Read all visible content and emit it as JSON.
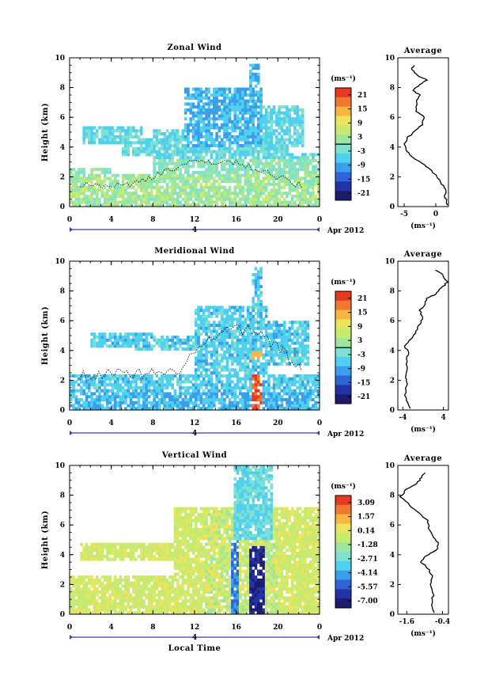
{
  "colors": {
    "frame": "#000000",
    "palette": [
      "#1c1c6e",
      "#2233a8",
      "#2f63d8",
      "#3a9fea",
      "#4fd0ee",
      "#7ee0d0",
      "#9ee59e",
      "#c7ea70",
      "#ece45c",
      "#f6b640",
      "#f07832",
      "#e83a22"
    ],
    "timeline": "#3a3aa0"
  },
  "chart_data": [
    {
      "type": "heatmap",
      "title": "Zonal Wind",
      "ylabel": "Height (km)",
      "x_ticks": [
        "0",
        "4",
        "8",
        "12",
        "16",
        "20",
        "0"
      ],
      "y_ticks": [
        "0",
        "2",
        "4",
        "6",
        "8",
        "10"
      ],
      "xlim": [
        0,
        24
      ],
      "ylim": [
        0,
        10
      ],
      "date_label": "Apr 2012",
      "timeline_label": "4",
      "colorbar": {
        "unit": "(ms⁻¹)",
        "ticks": [
          "21",
          "15",
          "9",
          "3",
          "-3",
          "-9",
          "-15",
          "-21"
        ],
        "zero_line_at": "3",
        "range": [
          -24,
          24
        ]
      },
      "profile": {
        "title": "Average",
        "xlabel": "(ms⁻¹)",
        "x_ticks": [
          "-5",
          "0"
        ],
        "xlim": [
          -6,
          2
        ],
        "points": [
          [
            1.8,
            0.1
          ],
          [
            1.5,
            0.6
          ],
          [
            1.6,
            1.2
          ],
          [
            0.8,
            1.6
          ],
          [
            0.2,
            2.0
          ],
          [
            -0.6,
            2.4
          ],
          [
            -1.8,
            2.8
          ],
          [
            -3.2,
            3.2
          ],
          [
            -4.3,
            3.6
          ],
          [
            -5.0,
            4.1
          ],
          [
            -4.6,
            4.6
          ],
          [
            -3.4,
            5.0
          ],
          [
            -2.2,
            5.5
          ],
          [
            -1.8,
            6.0
          ],
          [
            -3.2,
            6.4
          ],
          [
            -3.0,
            7.0
          ],
          [
            -2.6,
            7.5
          ],
          [
            -3.6,
            7.8
          ],
          [
            -2.4,
            8.2
          ],
          [
            -1.4,
            8.5
          ],
          [
            -2.8,
            8.8
          ],
          [
            -3.8,
            9.2
          ],
          [
            -3.3,
            9.6
          ]
        ]
      }
    },
    {
      "type": "heatmap",
      "title": "Meridional Wind",
      "ylabel": "Height (km)",
      "x_ticks": [
        "0",
        "4",
        "8",
        "12",
        "16",
        "20",
        "0"
      ],
      "y_ticks": [
        "0",
        "2",
        "4",
        "6",
        "8",
        "10"
      ],
      "xlim": [
        0,
        24
      ],
      "ylim": [
        0,
        10
      ],
      "date_label": "Apr 2012",
      "timeline_label": "4",
      "colorbar": {
        "unit": "(ms⁻¹)",
        "ticks": [
          "21",
          "15",
          "9",
          "3",
          "-3",
          "-9",
          "-15",
          "-21"
        ],
        "zero_line_at": "3",
        "range": [
          -24,
          24
        ]
      },
      "profile": {
        "title": "Average",
        "xlabel": "(ms⁻¹)",
        "x_ticks": [
          "-4",
          "4"
        ],
        "xlim": [
          -5,
          5
        ],
        "points": [
          [
            -2.6,
            0.1
          ],
          [
            -3.0,
            0.5
          ],
          [
            -3.6,
            1.0
          ],
          [
            -3.2,
            1.6
          ],
          [
            -3.5,
            2.2
          ],
          [
            -3.0,
            2.8
          ],
          [
            -3.4,
            3.4
          ],
          [
            -2.8,
            3.8
          ],
          [
            -3.6,
            4.3
          ],
          [
            -2.4,
            4.8
          ],
          [
            -1.4,
            5.3
          ],
          [
            -0.6,
            5.8
          ],
          [
            -0.2,
            6.2
          ],
          [
            -0.6,
            6.7
          ],
          [
            0.4,
            7.1
          ],
          [
            0.6,
            7.5
          ],
          [
            2.6,
            7.8
          ],
          [
            3.6,
            8.2
          ],
          [
            4.8,
            8.6
          ],
          [
            3.8,
            9.1
          ],
          [
            2.2,
            9.5
          ]
        ]
      }
    },
    {
      "type": "heatmap",
      "title": "Vertical Wind",
      "ylabel": "Height (km)",
      "xlabel": "Local Time",
      "x_ticks": [
        "0",
        "4",
        "8",
        "12",
        "16",
        "20",
        "0"
      ],
      "y_ticks": [
        "0",
        "2",
        "4",
        "6",
        "8",
        "10"
      ],
      "xlim": [
        0,
        24
      ],
      "ylim": [
        0,
        10
      ],
      "date_label": "Apr 2012",
      "timeline_label": "4",
      "colorbar": {
        "unit": "(ms⁻¹)",
        "ticks": [
          "3.09",
          "1.57",
          "0.14",
          "-1.28",
          "-2.71",
          "-4.14",
          "-5.57",
          "-7.00"
        ],
        "range": [
          -7.7,
          3.8
        ]
      },
      "profile": {
        "title": "Average",
        "xlabel": "(ms⁻¹)",
        "x_ticks": [
          "-1.6",
          "-0.4"
        ],
        "xlim": [
          -1.9,
          -0.2
        ],
        "points": [
          [
            -0.7,
            0.1
          ],
          [
            -0.75,
            0.8
          ],
          [
            -0.7,
            1.4
          ],
          [
            -0.8,
            2.0
          ],
          [
            -0.75,
            2.6
          ],
          [
            -0.9,
            3.1
          ],
          [
            -1.1,
            3.5
          ],
          [
            -1.0,
            3.9
          ],
          [
            -0.6,
            4.3
          ],
          [
            -0.55,
            4.8
          ],
          [
            -0.75,
            5.3
          ],
          [
            -0.85,
            5.8
          ],
          [
            -0.9,
            6.3
          ],
          [
            -1.2,
            6.8
          ],
          [
            -1.5,
            7.3
          ],
          [
            -1.8,
            7.9
          ],
          [
            -1.6,
            8.4
          ],
          [
            -1.25,
            8.8
          ],
          [
            -1.1,
            9.2
          ],
          [
            -0.95,
            9.6
          ]
        ]
      }
    }
  ]
}
